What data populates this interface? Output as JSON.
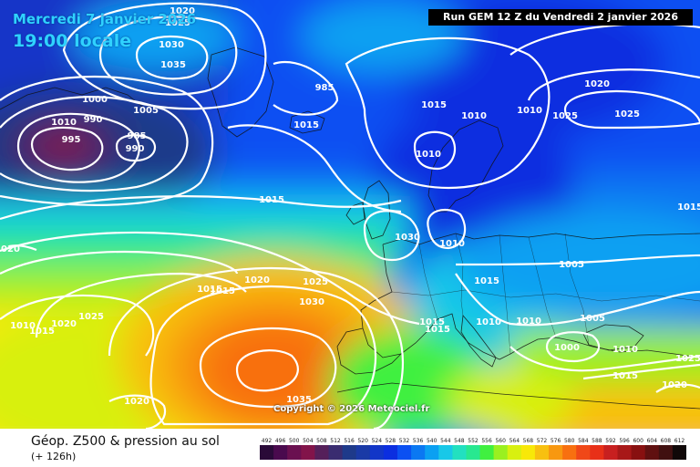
{
  "header": {
    "valid_date": "Mercredi 7 janvier 2026",
    "valid_time": "19:00 locale",
    "run_info": "Run GEM 12 Z du Vendredi 2 janvier 2026"
  },
  "footer": {
    "field_title": "Géop. Z500 & pression au sol",
    "lead_time": "(+ 126h)",
    "copyright": "Copyright © 2026 Meteociel.fr"
  },
  "legend": {
    "values": [
      "492",
      "496",
      "500",
      "504",
      "508",
      "512",
      "516",
      "520",
      "524",
      "528",
      "532",
      "536",
      "540",
      "544",
      "548",
      "552",
      "556",
      "560",
      "564",
      "568",
      "572",
      "576",
      "580",
      "584",
      "588",
      "592",
      "596",
      "600",
      "604",
      "608",
      "612"
    ],
    "colors": [
      "#2a0a38",
      "#4a0a4e",
      "#6a1050",
      "#82144a",
      "#55205a",
      "#3a2c70",
      "#1e3a8a",
      "#1a3aa6",
      "#1236c8",
      "#0b2ee0",
      "#0b50f2",
      "#0b78f2",
      "#0ba0f2",
      "#18c8e8",
      "#22e0c0",
      "#28e890",
      "#40f040",
      "#9af020",
      "#d8f010",
      "#f8e808",
      "#f8c010",
      "#f89810",
      "#f87010",
      "#f04818",
      "#e83018",
      "#c82020",
      "#a81818",
      "#881010",
      "#601010",
      "#401010",
      "#100808"
    ]
  },
  "map": {
    "isobars": [
      {
        "value": "1020"
      },
      {
        "value": "1025"
      },
      {
        "value": "1030"
      },
      {
        "value": "1035"
      },
      {
        "value": "1000"
      },
      {
        "value": "1005"
      },
      {
        "value": "1010"
      },
      {
        "value": "990"
      },
      {
        "value": "995"
      },
      {
        "value": "985"
      },
      {
        "value": "990"
      },
      {
        "value": "985"
      },
      {
        "value": "1015"
      },
      {
        "value": "1015"
      },
      {
        "value": "1015"
      },
      {
        "value": "1010"
      },
      {
        "value": "1010"
      },
      {
        "value": "1020"
      },
      {
        "value": "1025"
      },
      {
        "value": "1030"
      },
      {
        "value": "1010"
      },
      {
        "value": "1005"
      },
      {
        "value": "1015"
      },
      {
        "value": "1015"
      },
      {
        "value": "1015"
      },
      {
        "value": "1010"
      },
      {
        "value": "1010"
      },
      {
        "value": "1005"
      },
      {
        "value": "1000"
      },
      {
        "value": "1010"
      },
      {
        "value": "1015"
      },
      {
        "value": "1020"
      },
      {
        "value": "1025"
      },
      {
        "value": "1020"
      },
      {
        "value": "1015"
      },
      {
        "value": "1010"
      },
      {
        "value": "1015"
      },
      {
        "value": "1020"
      },
      {
        "value": "1025"
      },
      {
        "value": "1020"
      },
      {
        "value": "1025"
      },
      {
        "value": "1030"
      },
      {
        "value": "1035"
      },
      {
        "value": "1020"
      },
      {
        "value": "1015"
      },
      {
        "value": "1015"
      },
      {
        "value": "1010"
      },
      {
        "value": "1025"
      }
    ]
  }
}
